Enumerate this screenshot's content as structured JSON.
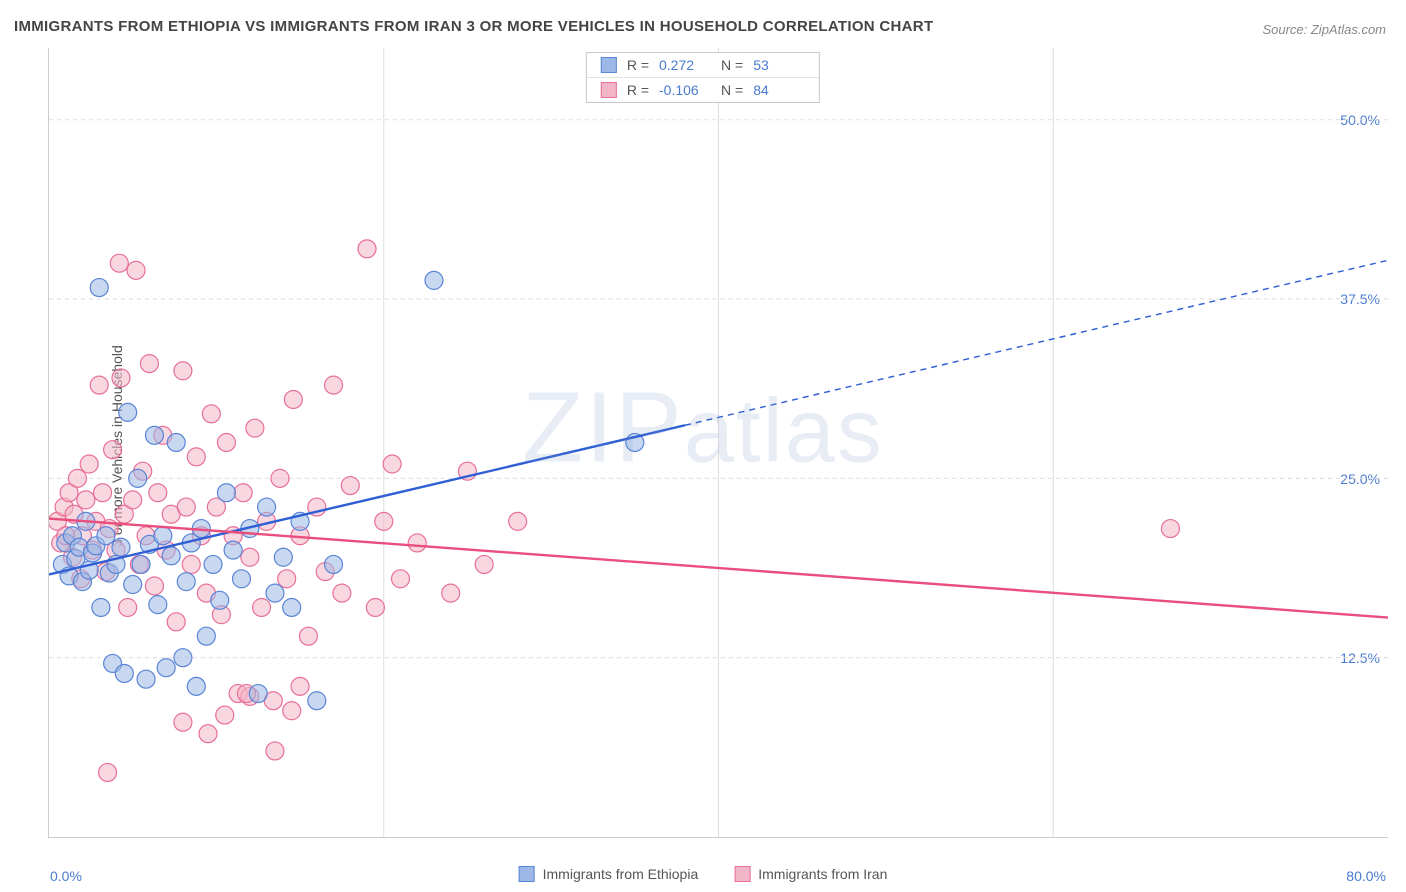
{
  "title": "IMMIGRANTS FROM ETHIOPIA VS IMMIGRANTS FROM IRAN 3 OR MORE VEHICLES IN HOUSEHOLD CORRELATION CHART",
  "source": "Source: ZipAtlas.com",
  "ylabel": "3 or more Vehicles in Household",
  "watermark": "ZIPatlas",
  "chart": {
    "type": "scatter",
    "xlim": [
      0,
      80
    ],
    "ylim": [
      0,
      55
    ],
    "x_tick_min": "0.0%",
    "x_tick_max": "80.0%",
    "y_ticks": [
      {
        "v": 12.5,
        "label": "12.5%"
      },
      {
        "v": 25.0,
        "label": "25.0%"
      },
      {
        "v": 37.5,
        "label": "37.5%"
      },
      {
        "v": 50.0,
        "label": "50.0%"
      }
    ],
    "v_grid_x": [
      20,
      40,
      60
    ],
    "background_color": "#ffffff",
    "grid_color": "#dddddd",
    "marker_radius": 9,
    "marker_opacity": 0.55,
    "marker_stroke_width": 1.2,
    "line_width": 2.4,
    "series": [
      {
        "name": "Immigrants from Ethiopia",
        "color_fill": "#9db8e6",
        "color_stroke": "#5a84d6",
        "line_color": "#2e5fd4",
        "R": "0.272",
        "N": "53",
        "trend": {
          "x1": 0,
          "y1": 18.3,
          "x2": 80,
          "y2": 40.2,
          "solid_until_x": 38
        },
        "points": [
          [
            0.8,
            19
          ],
          [
            1.0,
            20.5
          ],
          [
            1.2,
            18.2
          ],
          [
            1.4,
            21.0
          ],
          [
            1.6,
            19.4
          ],
          [
            1.8,
            20.2
          ],
          [
            2.0,
            17.8
          ],
          [
            2.2,
            22.0
          ],
          [
            2.4,
            18.6
          ],
          [
            2.6,
            19.8
          ],
          [
            2.8,
            20.3
          ],
          [
            3.0,
            38.3
          ],
          [
            3.1,
            16.0
          ],
          [
            3.4,
            21.0
          ],
          [
            3.6,
            18.4
          ],
          [
            3.8,
            12.1
          ],
          [
            4.0,
            19.0
          ],
          [
            4.3,
            20.2
          ],
          [
            4.5,
            11.4
          ],
          [
            4.7,
            29.6
          ],
          [
            5.0,
            17.6
          ],
          [
            5.3,
            25.0
          ],
          [
            5.5,
            19.0
          ],
          [
            5.8,
            11.0
          ],
          [
            6.0,
            20.4
          ],
          [
            6.3,
            28.0
          ],
          [
            6.5,
            16.2
          ],
          [
            6.8,
            21.0
          ],
          [
            7.0,
            11.8
          ],
          [
            7.3,
            19.6
          ],
          [
            7.6,
            27.5
          ],
          [
            8.0,
            12.5
          ],
          [
            8.2,
            17.8
          ],
          [
            8.5,
            20.5
          ],
          [
            8.8,
            10.5
          ],
          [
            9.1,
            21.5
          ],
          [
            9.4,
            14.0
          ],
          [
            9.8,
            19.0
          ],
          [
            10.2,
            16.5
          ],
          [
            10.6,
            24.0
          ],
          [
            11.0,
            20.0
          ],
          [
            11.5,
            18.0
          ],
          [
            12.0,
            21.5
          ],
          [
            12.5,
            10.0
          ],
          [
            13.0,
            23.0
          ],
          [
            13.5,
            17.0
          ],
          [
            14.0,
            19.5
          ],
          [
            14.5,
            16.0
          ],
          [
            15.0,
            22.0
          ],
          [
            16.0,
            9.5
          ],
          [
            17.0,
            19.0
          ],
          [
            23.0,
            38.8
          ],
          [
            35.0,
            27.5
          ]
        ]
      },
      {
        "name": "Immigrants from Iran",
        "color_fill": "#f2b6c8",
        "color_stroke": "#e86f96",
        "line_color": "#e94e7d",
        "R": "-0.106",
        "N": "84",
        "trend": {
          "x1": 0,
          "y1": 22.2,
          "x2": 80,
          "y2": 15.3,
          "solid_until_x": 80
        },
        "points": [
          [
            0.5,
            22.0
          ],
          [
            0.7,
            20.5
          ],
          [
            0.9,
            23.0
          ],
          [
            1.0,
            21.0
          ],
          [
            1.2,
            24.0
          ],
          [
            1.4,
            19.5
          ],
          [
            1.5,
            22.5
          ],
          [
            1.7,
            25.0
          ],
          [
            1.9,
            18.0
          ],
          [
            2.0,
            21.0
          ],
          [
            2.2,
            23.5
          ],
          [
            2.4,
            26.0
          ],
          [
            2.6,
            20.0
          ],
          [
            2.8,
            22.0
          ],
          [
            3.0,
            31.5
          ],
          [
            3.2,
            24.0
          ],
          [
            3.4,
            18.5
          ],
          [
            3.6,
            21.5
          ],
          [
            3.8,
            27.0
          ],
          [
            4.0,
            20.0
          ],
          [
            4.2,
            40.0
          ],
          [
            4.3,
            32.0
          ],
          [
            4.5,
            22.5
          ],
          [
            4.7,
            16.0
          ],
          [
            5.0,
            23.5
          ],
          [
            5.2,
            39.5
          ],
          [
            5.4,
            19.0
          ],
          [
            5.6,
            25.5
          ],
          [
            5.8,
            21.0
          ],
          [
            6.0,
            33.0
          ],
          [
            6.3,
            17.5
          ],
          [
            6.5,
            24.0
          ],
          [
            6.8,
            28.0
          ],
          [
            7.0,
            20.0
          ],
          [
            7.3,
            22.5
          ],
          [
            7.6,
            15.0
          ],
          [
            8.0,
            32.5
          ],
          [
            8.2,
            23.0
          ],
          [
            8.5,
            19.0
          ],
          [
            8.8,
            26.5
          ],
          [
            9.1,
            21.0
          ],
          [
            9.4,
            17.0
          ],
          [
            9.7,
            29.5
          ],
          [
            10.0,
            23.0
          ],
          [
            10.3,
            15.5
          ],
          [
            10.6,
            27.5
          ],
          [
            11.0,
            21.0
          ],
          [
            11.3,
            10.0
          ],
          [
            11.6,
            24.0
          ],
          [
            12.0,
            19.5
          ],
          [
            12.3,
            28.5
          ],
          [
            12.7,
            16.0
          ],
          [
            13.0,
            22.0
          ],
          [
            13.4,
            9.5
          ],
          [
            13.8,
            25.0
          ],
          [
            14.2,
            18.0
          ],
          [
            14.6,
            30.5
          ],
          [
            15.0,
            21.0
          ],
          [
            15.5,
            14.0
          ],
          [
            16.0,
            23.0
          ],
          [
            16.5,
            18.5
          ],
          [
            17.0,
            31.5
          ],
          [
            17.5,
            17.0
          ],
          [
            18.0,
            24.5
          ],
          [
            3.5,
            4.5
          ],
          [
            19.0,
            41.0
          ],
          [
            19.5,
            16.0
          ],
          [
            20.0,
            22.0
          ],
          [
            20.5,
            26.0
          ],
          [
            21.0,
            18.0
          ],
          [
            22.0,
            20.5
          ],
          [
            8.0,
            8.0
          ],
          [
            12.0,
            9.8
          ],
          [
            24.0,
            17.0
          ],
          [
            25.0,
            25.5
          ],
          [
            26.0,
            19.0
          ],
          [
            13.5,
            6.0
          ],
          [
            28.0,
            22.0
          ],
          [
            9.5,
            7.2
          ],
          [
            15.0,
            10.5
          ],
          [
            10.5,
            8.5
          ],
          [
            11.8,
            10.0
          ],
          [
            14.5,
            8.8
          ],
          [
            67.0,
            21.5
          ]
        ]
      }
    ]
  },
  "legend": {
    "series1": "Immigrants from Ethiopia",
    "series2": "Immigrants from Iran"
  }
}
